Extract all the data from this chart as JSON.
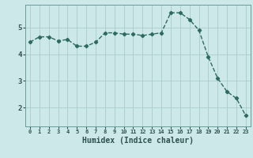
{
  "x": [
    0,
    1,
    2,
    3,
    4,
    5,
    6,
    7,
    8,
    9,
    10,
    11,
    12,
    13,
    14,
    15,
    16,
    17,
    18,
    19,
    20,
    21,
    22,
    23
  ],
  "y": [
    4.45,
    4.65,
    4.65,
    4.5,
    4.55,
    4.3,
    4.3,
    4.45,
    4.8,
    4.8,
    4.75,
    4.75,
    4.7,
    4.75,
    4.8,
    5.55,
    5.55,
    5.3,
    4.9,
    3.9,
    3.1,
    2.6,
    2.35,
    1.7
  ],
  "line_color": "#2d6b5e",
  "marker": "D",
  "marker_size": 2.2,
  "linewidth": 1.0,
  "background_color": "#cce8e8",
  "grid_color": "#aacccc",
  "xlabel": "Humidex (Indice chaleur)",
  "xlabel_fontsize": 7,
  "tick_color": "#2d5050",
  "ytick_labels": [
    "2",
    "3",
    "4",
    "5"
  ],
  "yticks": [
    2,
    3,
    4,
    5
  ],
  "ylim": [
    1.3,
    5.85
  ],
  "xlim": [
    -0.5,
    23.5
  ],
  "xtick_fontsize": 5.0,
  "ytick_fontsize": 6.5
}
